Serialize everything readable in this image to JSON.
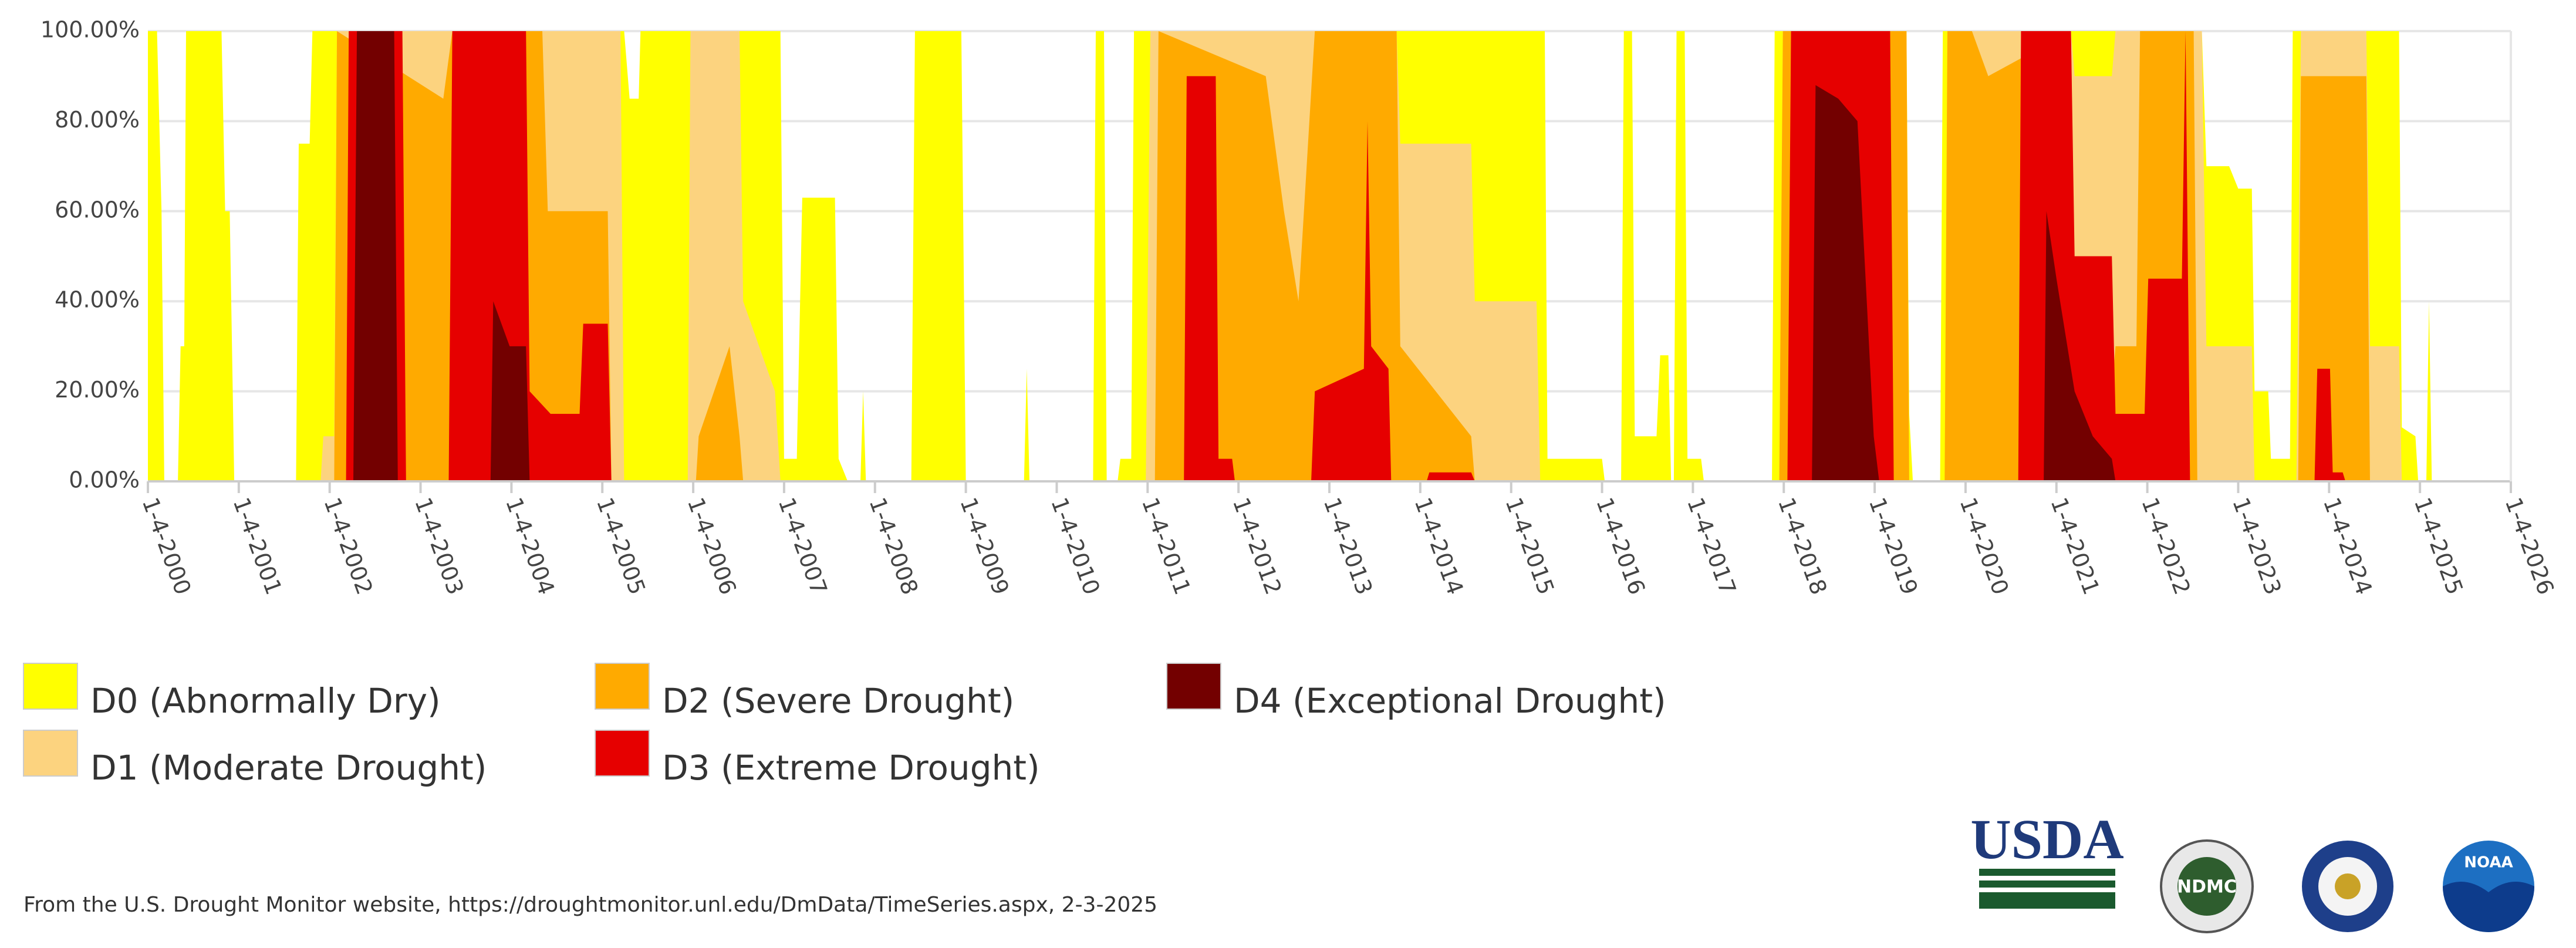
{
  "chart_data": {
    "type": "area",
    "xlim": [
      2000,
      2026
    ],
    "xticks": [
      {
        "value": 2000,
        "label": "1-4-2000"
      },
      {
        "value": 2001,
        "label": "1-4-2001"
      },
      {
        "value": 2002,
        "label": "1-4-2002"
      },
      {
        "value": 2003,
        "label": "1-4-2003"
      },
      {
        "value": 2004,
        "label": "1-4-2004"
      },
      {
        "value": 2005,
        "label": "1-4-2005"
      },
      {
        "value": 2006,
        "label": "1-4-2006"
      },
      {
        "value": 2007,
        "label": "1-4-2007"
      },
      {
        "value": 2008,
        "label": "1-4-2008"
      },
      {
        "value": 2009,
        "label": "1-4-2009"
      },
      {
        "value": 2010,
        "label": "1-4-2010"
      },
      {
        "value": 2011,
        "label": "1-4-2011"
      },
      {
        "value": 2012,
        "label": "1-4-2012"
      },
      {
        "value": 2013,
        "label": "1-4-2013"
      },
      {
        "value": 2014,
        "label": "1-4-2014"
      },
      {
        "value": 2015,
        "label": "1-4-2015"
      },
      {
        "value": 2016,
        "label": "1-4-2016"
      },
      {
        "value": 2017,
        "label": "1-4-2017"
      },
      {
        "value": 2018,
        "label": "1-4-2018"
      },
      {
        "value": 2019,
        "label": "1-4-2019"
      },
      {
        "value": 2020,
        "label": "1-4-2020"
      },
      {
        "value": 2021,
        "label": "1-4-2021"
      },
      {
        "value": 2022,
        "label": "1-4-2022"
      },
      {
        "value": 2023,
        "label": "1-4-2023"
      },
      {
        "value": 2024,
        "label": "1-4-2024"
      },
      {
        "value": 2025,
        "label": "1-4-2025"
      },
      {
        "value": 2026,
        "label": "1-4-2026"
      }
    ],
    "ylim": [
      0,
      100
    ],
    "yticks": [
      {
        "value": 0,
        "label": "0.00%"
      },
      {
        "value": 20,
        "label": "20.00%"
      },
      {
        "value": 40,
        "label": "40.00%"
      },
      {
        "value": 60,
        "label": "60.00%"
      },
      {
        "value": 80,
        "label": "80.00%"
      },
      {
        "value": 100,
        "label": "100.00%"
      }
    ],
    "grid": true,
    "series": [
      {
        "name": "D0 (Abnormally Dry)",
        "color": "#ffff00",
        "x": [
          2000.0,
          2000.1,
          2000.15,
          2000.18,
          2000.33,
          2000.36,
          2000.4,
          2000.42,
          2000.81,
          2000.85,
          2000.9,
          2000.95,
          2001.63,
          2001.66,
          2001.78,
          2001.81,
          2005.24,
          2005.3,
          2005.4,
          2005.42,
          2006.96,
          2007.0,
          2007.14,
          2007.2,
          2007.56,
          2007.6,
          2007.7,
          2007.84,
          2007.87,
          2007.9,
          2008.4,
          2008.44,
          2008.95,
          2009.0,
          2009.64,
          2009.67,
          2009.7,
          2010.4,
          2010.43,
          2010.52,
          2010.55,
          2010.67,
          2010.7,
          2010.82,
          2010.85,
          2015.37,
          2015.4,
          2016.0,
          2016.03,
          2016.21,
          2016.24,
          2016.33,
          2016.36,
          2016.6,
          2016.64,
          2016.73,
          2016.76,
          2016.79,
          2016.82,
          2016.91,
          2016.94,
          2017.09,
          2017.12,
          2017.87,
          2017.9,
          2019.35,
          2019.38,
          2019.42,
          2019.72,
          2019.75,
          2022.6,
          2022.65,
          2022.9,
          2023.0,
          2023.15,
          2023.18,
          2023.33,
          2023.36,
          2023.57,
          2023.6,
          2024.77,
          2024.8,
          2024.95,
          2024.98,
          2025.07,
          2025.1,
          2025.13
        ],
        "values": [
          100,
          100,
          60,
          0,
          0,
          30,
          30,
          100,
          100,
          60,
          60,
          0,
          0,
          75,
          75,
          100,
          100,
          85,
          85,
          100,
          100,
          5,
          5,
          63,
          63,
          5,
          0,
          0,
          20,
          0,
          0,
          100,
          100,
          0,
          0,
          25,
          0,
          0,
          100,
          100,
          0,
          0,
          5,
          5,
          100,
          100,
          5,
          5,
          0,
          0,
          100,
          100,
          10,
          10,
          28,
          28,
          0,
          0,
          100,
          100,
          5,
          5,
          0,
          0,
          100,
          100,
          15,
          0,
          0,
          100,
          100,
          70,
          70,
          65,
          65,
          20,
          20,
          5,
          5,
          100,
          100,
          12,
          10,
          0,
          0,
          40,
          0
        ]
      },
      {
        "name": "D1 (Moderate Drought)",
        "color": "#fcd37f",
        "x": [
          2001.9,
          2001.93,
          2002.05,
          2002.08,
          2005.2,
          2005.24,
          2005.94,
          2005.97,
          2006.51,
          2006.55,
          2006.9,
          2006.96,
          2010.98,
          2011.03,
          2013.74,
          2013.78,
          2014.56,
          2014.6,
          2015.28,
          2015.32,
          2017.95,
          2017.99,
          2019.26,
          2019.3,
          2019.86,
          2019.89,
          2020.0,
          2020.07,
          2021.16,
          2021.2,
          2021.61,
          2021.65,
          2022.6,
          2022.65,
          2023.15,
          2023.18,
          2023.64,
          2023.69,
          2024.41,
          2024.45,
          2024.77,
          2024.8
        ],
        "values": [
          0,
          10,
          10,
          100,
          100,
          0,
          0,
          100,
          100,
          40,
          20,
          0,
          0,
          100,
          100,
          75,
          75,
          40,
          40,
          0,
          0,
          100,
          100,
          0,
          0,
          100,
          60,
          100,
          100,
          90,
          90,
          100,
          100,
          30,
          30,
          0,
          0,
          100,
          100,
          30,
          30,
          0
        ]
      },
      {
        "name": "D2 (Severe Drought)",
        "color": "#ffaa00",
        "x": [
          2002.05,
          2002.08,
          2003.25,
          2003.35,
          2004.34,
          2004.4,
          2005.06,
          2005.1,
          2006.03,
          2006.06,
          2006.4,
          2006.51,
          2006.55,
          2011.08,
          2011.12,
          2012.3,
          2012.5,
          2012.66,
          2012.84,
          2013.74,
          2013.78,
          2014.56,
          2014.6,
          2017.95,
          2017.99,
          2019.35,
          2019.38,
          2019.77,
          2019.8,
          2020.07,
          2020.25,
          2021.16,
          2021.2,
          2021.61,
          2021.65,
          2021.88,
          2021.92,
          2022.51,
          2022.55,
          2023.66,
          2023.69,
          2024.41,
          2024.45
        ],
        "values": [
          0,
          100,
          85,
          100,
          100,
          60,
          60,
          0,
          0,
          10,
          30,
          10,
          0,
          0,
          100,
          90,
          60,
          40,
          100,
          100,
          30,
          10,
          0,
          0,
          100,
          100,
          0,
          0,
          100,
          100,
          90,
          100,
          40,
          20,
          30,
          30,
          100,
          100,
          0,
          0,
          90,
          90,
          0
        ]
      },
      {
        "name": "D3 (Extreme Drought)",
        "color": "#e60000",
        "x": [
          2002.18,
          2002.21,
          2002.8,
          2002.84,
          2003.31,
          2003.35,
          2004.16,
          2004.2,
          2004.43,
          2004.75,
          2004.79,
          2005.06,
          2005.1,
          2011.4,
          2011.43,
          2011.75,
          2011.78,
          2011.93,
          2011.96,
          2012.8,
          2012.84,
          2013.38,
          2013.42,
          2013.46,
          2013.65,
          2013.68,
          2014.07,
          2014.1,
          2014.56,
          2014.6,
          2018.04,
          2018.08,
          2019.17,
          2019.21,
          2020.58,
          2020.61,
          2021.16,
          2021.2,
          2021.61,
          2021.65,
          2021.97,
          2022.01,
          2022.38,
          2022.42,
          2022.47,
          2023.84,
          2023.87,
          2024.01,
          2024.04,
          2024.15,
          2024.18
        ],
        "values": [
          0,
          100,
          100,
          0,
          0,
          100,
          100,
          20,
          15,
          15,
          35,
          35,
          0,
          0,
          90,
          90,
          5,
          5,
          0,
          0,
          20,
          25,
          80,
          30,
          25,
          0,
          0,
          2,
          2,
          0,
          0,
          100,
          100,
          0,
          0,
          100,
          100,
          50,
          50,
          15,
          15,
          45,
          45,
          100,
          0,
          0,
          25,
          25,
          2,
          2,
          0
        ]
      },
      {
        "name": "D4 (Exceptional Drought)",
        "color": "#730000",
        "x": [
          2002.26,
          2002.3,
          2002.71,
          2002.75,
          2003.77,
          2003.8,
          2003.98,
          2004.16,
          2004.2,
          2018.31,
          2018.35,
          2018.6,
          2018.81,
          2018.99,
          2019.05,
          2020.86,
          2020.89,
          2021.0,
          2021.2,
          2021.4,
          2021.61,
          2021.65
        ],
        "values": [
          0,
          100,
          100,
          0,
          0,
          40,
          30,
          30,
          0,
          0,
          88,
          85,
          80,
          10,
          0,
          0,
          60,
          45,
          20,
          10,
          5,
          0
        ]
      }
    ],
    "source": "From the U.S. Drought Monitor website, https://droughtmonitor.unl.edu/DmData/TimeSeries.aspx, 2-3-2025",
    "logos": [
      "USDA",
      "NDMC",
      "NOAA"
    ]
  }
}
